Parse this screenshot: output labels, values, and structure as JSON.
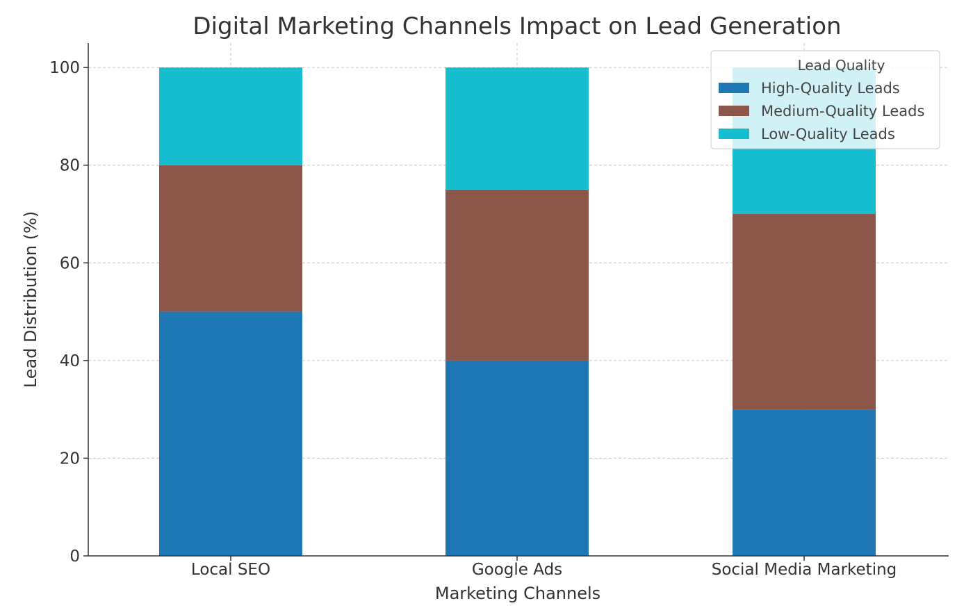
{
  "chart_data": {
    "type": "bar",
    "stacked": true,
    "title": "Digital Marketing Channels Impact on Lead Generation",
    "xlabel": "Marketing Channels",
    "ylabel": "Lead Distribution (%)",
    "categories": [
      "Local SEO",
      "Google Ads",
      "Social Media Marketing"
    ],
    "series": [
      {
        "name": "High-Quality Leads",
        "values": [
          50,
          40,
          30
        ],
        "color": "#1f77b4"
      },
      {
        "name": "Medium-Quality Leads",
        "values": [
          30,
          35,
          40
        ],
        "color": "#8c564b"
      },
      {
        "name": "Low-Quality Leads",
        "values": [
          20,
          25,
          30
        ],
        "color": "#17becf"
      }
    ],
    "ylim": [
      0,
      105
    ],
    "yticks": [
      0,
      20,
      40,
      60,
      80,
      100
    ],
    "grid": true,
    "legend": {
      "title": "Lead Quality",
      "placement": "top-right"
    }
  }
}
